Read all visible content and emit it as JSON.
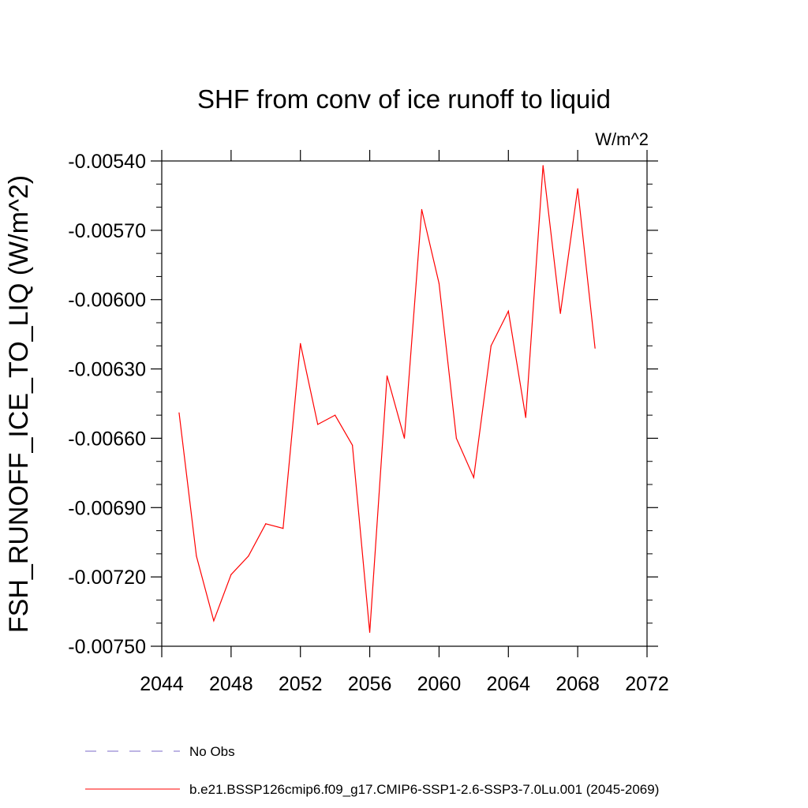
{
  "chart_data": {
    "type": "line",
    "title": "SHF from conv of ice runoff to liquid",
    "units_label": "W/m^2",
    "xlabel": "",
    "ylabel": "FSH_RUNOFF_ICE_TO_LIQ  (W/m^2)",
    "xlim": [
      2044,
      2072
    ],
    "ylim": [
      -0.0075,
      -0.0054
    ],
    "xticks": [
      2044,
      2048,
      2052,
      2056,
      2060,
      2064,
      2068,
      2072
    ],
    "xtick_labels": [
      "2044",
      "2048",
      "2052",
      "2056",
      "2060",
      "2064",
      "2068",
      "2072"
    ],
    "yticks": [
      -0.0054,
      -0.0057,
      -0.006,
      -0.0063,
      -0.0066,
      -0.0069,
      -0.0072,
      -0.0075
    ],
    "ytick_labels": [
      "-0.00540",
      "-0.00570",
      "-0.00600",
      "-0.00630",
      "-0.00660",
      "-0.00690",
      "-0.00720",
      "-0.00750"
    ],
    "grid": false,
    "legend_position": "bottom",
    "series": [
      {
        "name": "No Obs",
        "color": "#7b68c8",
        "dash": "dashed",
        "x": [],
        "y": []
      },
      {
        "name": "b.e21.BSSP126cmip6.f09_g17.CMIP6-SSP1-2.6-SSP3-7.0Lu.001 (2045-2069)",
        "color": "#ff0000",
        "dash": "solid",
        "x": [
          2045,
          2046,
          2047,
          2048,
          2049,
          2050,
          2051,
          2052,
          2053,
          2054,
          2055,
          2056,
          2057,
          2058,
          2059,
          2060,
          2061,
          2062,
          2063,
          2064,
          2065,
          2066,
          2067,
          2068,
          2069
        ],
        "y": [
          -0.00649,
          -0.00711,
          -0.00739,
          -0.00719,
          -0.00711,
          -0.00697,
          -0.00699,
          -0.00619,
          -0.00654,
          -0.0065,
          -0.00663,
          -0.00744,
          -0.00633,
          -0.0066,
          -0.00561,
          -0.00593,
          -0.0066,
          -0.00677,
          -0.0062,
          -0.00605,
          -0.00651,
          -0.00542,
          -0.00606,
          -0.00552,
          -0.00621
        ]
      }
    ]
  }
}
